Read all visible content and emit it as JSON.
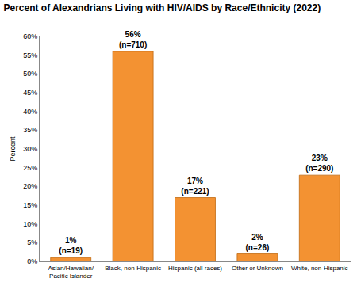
{
  "chart_data": {
    "type": "bar",
    "title": "Percent of Alexandrians Living with HIV/AIDS by Race/Ethnicity (2022)",
    "y_label": "Percent",
    "categories": [
      "Asian/Hawaiian/\nPacific Islander",
      "Black, non-Hispanic",
      "Hispanic (all races)",
      "Other or Unknown",
      "White, non-Hispanic"
    ],
    "values": [
      1,
      56,
      17,
      2,
      23
    ],
    "value_labels": [
      "1%\n(n=19)",
      "56%\n(n=710)",
      "17%\n(n=221)",
      "2%\n(n=26)",
      "23%\n(n=290)"
    ],
    "data_labels": true,
    "color": "#f39232",
    "ylim": [
      0,
      60
    ],
    "yticks": [
      {
        "value": 0,
        "label": "0%"
      },
      {
        "value": 5,
        "label": "5%"
      },
      {
        "value": 10,
        "label": "10%"
      },
      {
        "value": 15,
        "label": "15%"
      },
      {
        "value": 20,
        "label": "20%"
      },
      {
        "value": 25,
        "label": "25%"
      },
      {
        "value": 30,
        "label": "30%"
      },
      {
        "value": 35,
        "label": "35%"
      },
      {
        "value": 40,
        "label": "40%"
      },
      {
        "value": 45,
        "label": "45%"
      },
      {
        "value": 50,
        "label": "50%"
      },
      {
        "value": 55,
        "label": "55%"
      },
      {
        "value": 60,
        "label": "60%"
      }
    ],
    "grid": false
  }
}
